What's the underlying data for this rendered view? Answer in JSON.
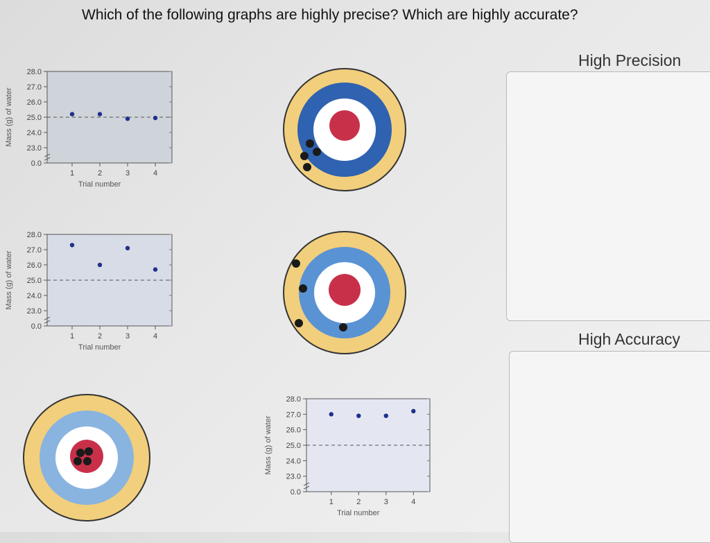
{
  "question": "Which of the following graphs are highly precise? Which are highly accurate?",
  "boxes": {
    "precision_title": "High Precision",
    "accuracy_title": "High Accuracy"
  },
  "colors": {
    "plot_bg": "#d2d5dc",
    "point": "#1f2f8a",
    "target_outer": "#f2cf7c",
    "target_blue": "#2f62b0",
    "target_light_blue": "#8ab4e0",
    "target_white": "#ffffff",
    "target_bullseye": "#c8304a",
    "shot": "#1a1a1a"
  },
  "chart_data": [
    {
      "type": "scatter",
      "xlabel": "Trial number",
      "ylabel": "Mass (g) of water",
      "y_ticks": [
        "0.0",
        "23.0",
        "24.0",
        "25.0",
        "26.0",
        "27.0",
        "28.0"
      ],
      "x_ticks": [
        "1",
        "2",
        "3",
        "4"
      ],
      "x": [
        1,
        2,
        3,
        4
      ],
      "y": [
        25.2,
        25.2,
        24.9,
        24.95
      ],
      "reference_line": 25.0
    },
    {
      "type": "scatter",
      "xlabel": "Trial number",
      "ylabel": "Mass (g) of water",
      "y_ticks": [
        "0.0",
        "23.0",
        "24.0",
        "25.0",
        "26.0",
        "27.0",
        "28.0"
      ],
      "x_ticks": [
        "1",
        "2",
        "3",
        "4"
      ],
      "x": [
        1,
        2,
        3,
        4
      ],
      "y": [
        27.3,
        26.0,
        27.1,
        25.7
      ],
      "reference_line": 25.0
    },
    {
      "type": "scatter",
      "xlabel": "Trial number",
      "ylabel": "Mass (g) of water",
      "y_ticks": [
        "0.0",
        "23.0",
        "24.0",
        "25.0",
        "26.0",
        "27.0",
        "28.0"
      ],
      "x_ticks": [
        "1",
        "2",
        "3",
        "4"
      ],
      "x": [
        1,
        2,
        3,
        4
      ],
      "y": [
        27.0,
        26.9,
        26.9,
        27.2
      ],
      "reference_line": 25.0
    }
  ],
  "targets": [
    {
      "style": "dark",
      "shots": "clustered low-left on the blue ring"
    },
    {
      "style": "light",
      "shots": "scattered around the outer ring"
    },
    {
      "style": "light",
      "shots": "clustered on the bullseye"
    }
  ]
}
